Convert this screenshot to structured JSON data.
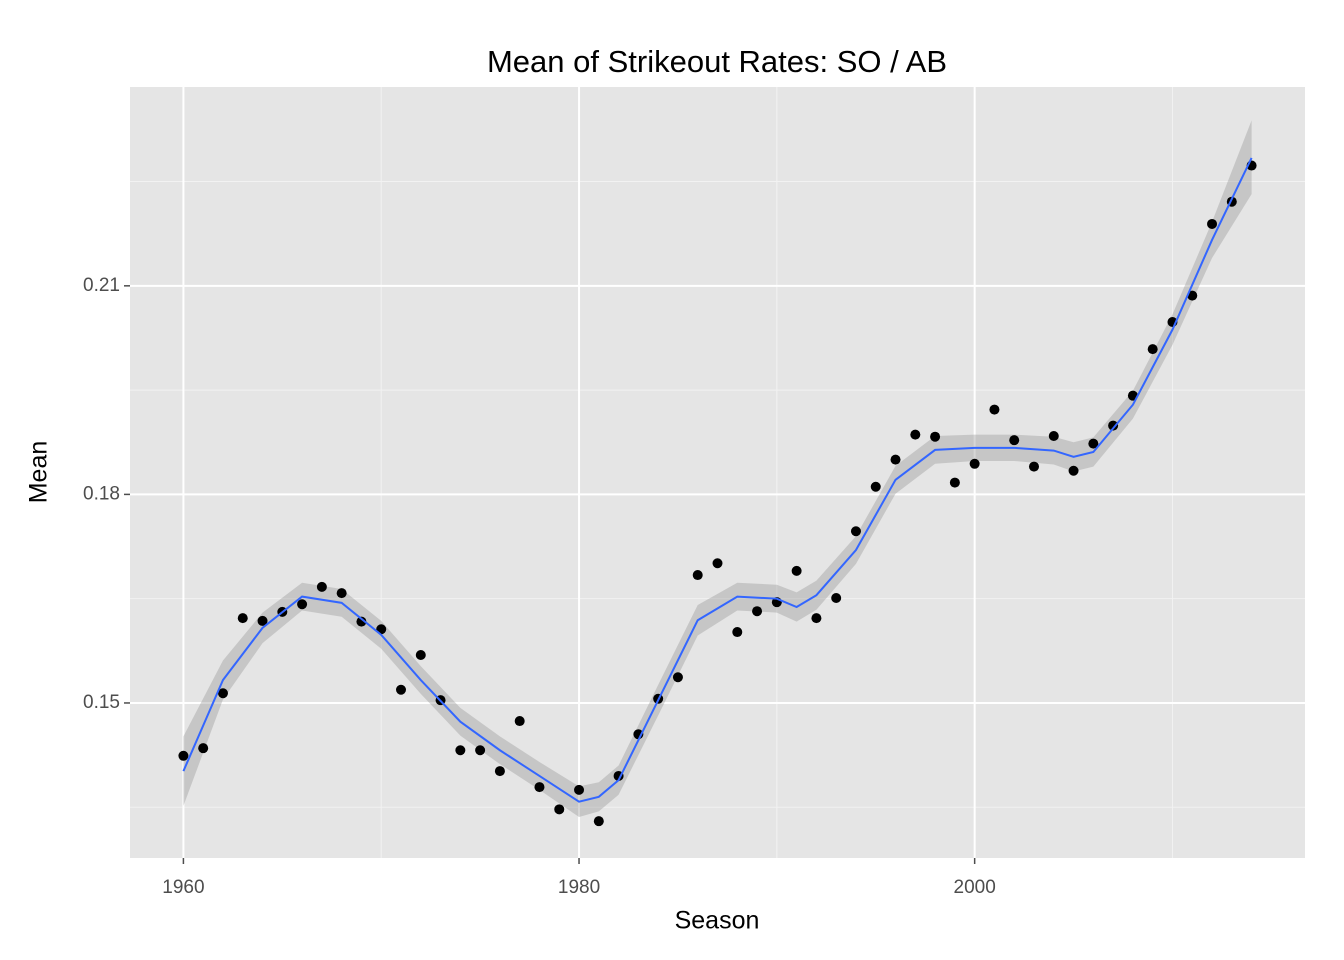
{
  "chart_data": {
    "type": "scatter",
    "title": "Mean of Strikeout Rates: SO / AB",
    "x_label": "Season",
    "y_label": "Mean",
    "xlim": [
      1957.3,
      2016.7
    ],
    "ylim": [
      0.1277,
      0.2386
    ],
    "xticks": [
      1960,
      1980,
      2000
    ],
    "yticks": [
      0.15,
      0.18,
      0.21
    ],
    "xminor": [
      1970,
      1990,
      2010
    ],
    "yminor": [
      0.135,
      0.165,
      0.195,
      0.225
    ],
    "grid": true,
    "point_color": "#000000",
    "x": [
      1960,
      1961,
      1962,
      1963,
      1964,
      1965,
      1966,
      1967,
      1968,
      1969,
      1970,
      1971,
      1972,
      1973,
      1974,
      1975,
      1976,
      1977,
      1978,
      1979,
      1980,
      1981,
      1982,
      1983,
      1984,
      1985,
      1986,
      1987,
      1988,
      1989,
      1990,
      1991,
      1992,
      1993,
      1994,
      1995,
      1996,
      1997,
      1998,
      1999,
      2000,
      2001,
      2002,
      2003,
      2004,
      2005,
      2006,
      2007,
      2008,
      2009,
      2010,
      2011,
      2012,
      2013,
      2014
    ],
    "values": [
      0.1424,
      0.1435,
      0.1514,
      0.1622,
      0.1618,
      0.1631,
      0.1642,
      0.1667,
      0.1658,
      0.1617,
      0.1606,
      0.1519,
      0.1569,
      0.1504,
      0.1432,
      0.1432,
      0.1402,
      0.1474,
      0.1379,
      0.1347,
      0.1375,
      0.133,
      0.1395,
      0.1455,
      0.1506,
      0.1537,
      0.1684,
      0.1701,
      0.1602,
      0.1632,
      0.1645,
      0.169,
      0.1622,
      0.1651,
      0.1747,
      0.1811,
      0.185,
      0.1886,
      0.1883,
      0.1817,
      0.1844,
      0.1922,
      0.1878,
      0.184,
      0.1884,
      0.1834,
      0.1873,
      0.1899,
      0.1942,
      0.2009,
      0.2048,
      0.2086,
      0.2189,
      0.2221,
      0.2273
    ],
    "smooth": {
      "color": "#3366ff",
      "band_color": "#999999",
      "x": [
        1960,
        1962,
        1964,
        1966,
        1968,
        1970,
        1972,
        1974,
        1976,
        1978,
        1980,
        1981,
        1982,
        1984,
        1986,
        1988,
        1990,
        1991,
        1992,
        1994,
        1996,
        1998,
        2000,
        2002,
        2004,
        2005,
        2006,
        2008,
        2010,
        2012,
        2014
      ],
      "values": [
        0.1402,
        0.1533,
        0.1608,
        0.1653,
        0.1644,
        0.1598,
        0.1533,
        0.1473,
        0.1432,
        0.1395,
        0.1358,
        0.1365,
        0.1389,
        0.1504,
        0.1619,
        0.1653,
        0.165,
        0.1638,
        0.1655,
        0.172,
        0.1821,
        0.1864,
        0.1867,
        0.1867,
        0.1863,
        0.1854,
        0.1861,
        0.1929,
        0.2037,
        0.2166,
        0.2284
      ],
      "lower": [
        0.1352,
        0.1505,
        0.1586,
        0.1633,
        0.1624,
        0.1578,
        0.1513,
        0.1453,
        0.1412,
        0.1375,
        0.1336,
        0.1344,
        0.1368,
        0.1482,
        0.1597,
        0.1633,
        0.163,
        0.1617,
        0.1634,
        0.17,
        0.1801,
        0.1844,
        0.1848,
        0.1848,
        0.1843,
        0.1833,
        0.184,
        0.1909,
        0.2015,
        0.214,
        0.2232
      ],
      "upper": [
        0.1452,
        0.1561,
        0.163,
        0.1673,
        0.1664,
        0.1618,
        0.1553,
        0.1493,
        0.1452,
        0.1415,
        0.138,
        0.1386,
        0.141,
        0.1526,
        0.1641,
        0.1673,
        0.167,
        0.1659,
        0.1676,
        0.174,
        0.1841,
        0.1884,
        0.1886,
        0.1886,
        0.1883,
        0.1875,
        0.1882,
        0.1949,
        0.2059,
        0.2192,
        0.2338
      ]
    }
  }
}
